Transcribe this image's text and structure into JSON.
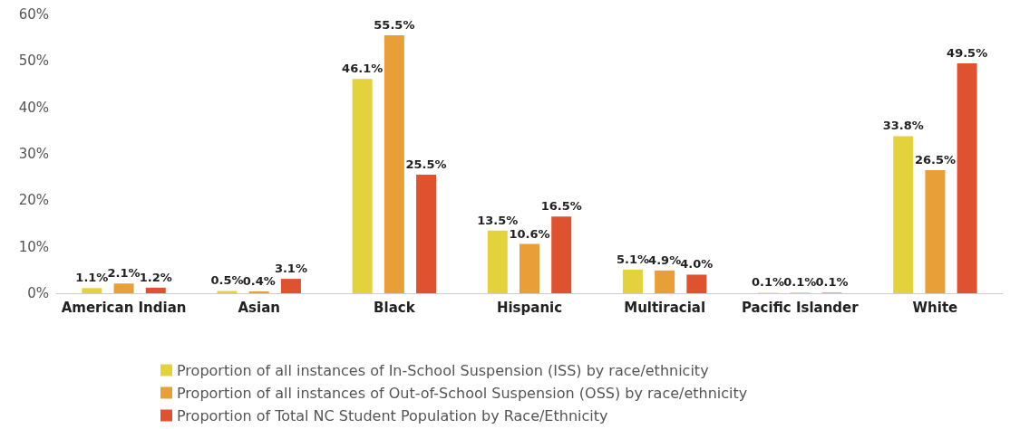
{
  "chart_data": {
    "type": "bar",
    "categories": [
      "American Indian",
      "Asian",
      "Black",
      "Hispanic",
      "Multiracial",
      "Pacific Islander",
      "White"
    ],
    "series": [
      {
        "name": "Proportion of all instances of In-School Suspension (ISS) by race/ethnicity",
        "color": "#e3d23b",
        "values": [
          1.1,
          0.5,
          46.1,
          13.5,
          5.1,
          0.1,
          33.8
        ],
        "value_labels": [
          "1.1%",
          "0.5%",
          "46.1%",
          "13.5%",
          "5.1%",
          "0.1%",
          "33.8%"
        ]
      },
      {
        "name": "Proportion of all instances of Out-of-School Suspension (OSS) by race/ethnicity",
        "color": "#e89f38",
        "values": [
          2.1,
          0.4,
          55.5,
          10.6,
          4.9,
          0.1,
          26.5
        ],
        "value_labels": [
          "2.1%",
          "0.4%",
          "55.5%",
          "10.6%",
          "4.9%",
          "0.1%",
          "26.5%"
        ]
      },
      {
        "name": "Proportion of Total NC Student Population by Race/Ethnicity",
        "color": "#df5230",
        "values": [
          1.2,
          3.1,
          25.5,
          16.5,
          4.0,
          0.1,
          49.5
        ],
        "value_labels": [
          "1.2%",
          "3.1%",
          "25.5%",
          "16.5%",
          "4.0%",
          "0.1%",
          "49.5%"
        ]
      }
    ],
    "ylim": [
      0,
      60
    ],
    "yticks": [
      {
        "value": 0,
        "label": "0%"
      },
      {
        "value": 10,
        "label": "10%"
      },
      {
        "value": 20,
        "label": "20%"
      },
      {
        "value": 30,
        "label": "30%"
      },
      {
        "value": 40,
        "label": "40%"
      },
      {
        "value": 50,
        "label": "50%"
      },
      {
        "value": 60,
        "label": "60%"
      }
    ],
    "grid": false,
    "legend": "bottom"
  }
}
